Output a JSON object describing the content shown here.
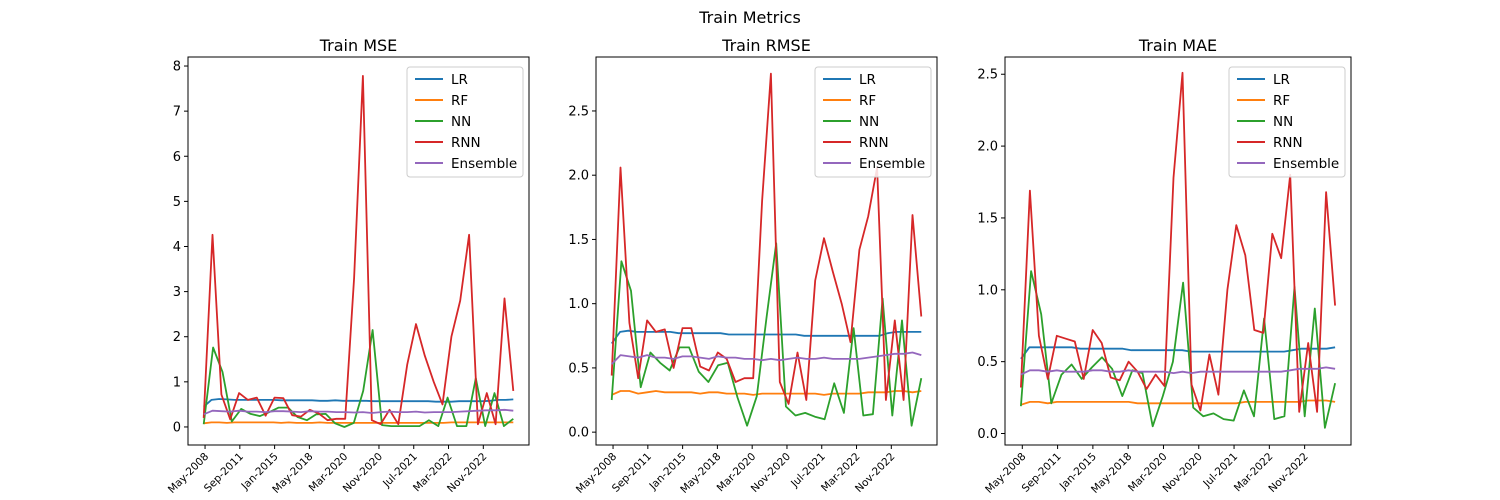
{
  "figure_title": "Train Metrics",
  "colors": {
    "LR": "#1f77b4",
    "RF": "#ff7f0e",
    "NN": "#2ca02c",
    "RNN": "#d62728",
    "Ensemble": "#9467bd"
  },
  "chart_data": [
    {
      "type": "line",
      "title": "Train MSE",
      "xlabel": "",
      "ylabel": "",
      "x_tick_labels": [
        "May-2008",
        "Sep-2011",
        "Jan-2015",
        "May-2018",
        "Mar-2020",
        "Nov-2020",
        "Jul-2021",
        "Mar-2022",
        "Nov-2022"
      ],
      "ylim": [
        -0.4,
        8.2
      ],
      "yticks": [
        0,
        1,
        2,
        3,
        4,
        5,
        6,
        7,
        8
      ],
      "legend_position": "top-right",
      "grid": false,
      "series": [
        {
          "name": "LR",
          "values": [
            0.45,
            0.6,
            0.62,
            0.61,
            0.6,
            0.6,
            0.6,
            0.6,
            0.6,
            0.6,
            0.59,
            0.59,
            0.59,
            0.59,
            0.59,
            0.58,
            0.58,
            0.59,
            0.58,
            0.58,
            0.58,
            0.58,
            0.57,
            0.57,
            0.57,
            0.57,
            0.57,
            0.57,
            0.57,
            0.57,
            0.56,
            0.56,
            0.56,
            0.57,
            0.57,
            0.57,
            0.57,
            0.58,
            0.6,
            0.6,
            0.61
          ]
        },
        {
          "name": "RF",
          "values": [
            0.08,
            0.1,
            0.1,
            0.09,
            0.1,
            0.1,
            0.1,
            0.1,
            0.1,
            0.1,
            0.09,
            0.1,
            0.09,
            0.09,
            0.09,
            0.1,
            0.09,
            0.09,
            0.09,
            0.09,
            0.09,
            0.09,
            0.09,
            0.09,
            0.09,
            0.09,
            0.09,
            0.09,
            0.09,
            0.09,
            0.09,
            0.09,
            0.1,
            0.1,
            0.1,
            0.1,
            0.1,
            0.1,
            0.1,
            0.1,
            0.1
          ]
        },
        {
          "name": "NN",
          "values": [
            0.06,
            1.76,
            1.22,
            0.12,
            0.4,
            0.29,
            0.24,
            0.33,
            0.43,
            0.43,
            0.22,
            0.15,
            0.28,
            0.29,
            0.08,
            0.0,
            0.09,
            0.8,
            2.15,
            0.04,
            0.02,
            0.02,
            0.02,
            0.02,
            0.15,
            0.02,
            0.65,
            0.02,
            0.02,
            1.08,
            0.02,
            0.75,
            0.02,
            0.18
          ]
        },
        {
          "name": "RNN",
          "values": [
            0.2,
            4.26,
            0.72,
            0.17,
            0.75,
            0.6,
            0.65,
            0.25,
            0.65,
            0.64,
            0.26,
            0.23,
            0.38,
            0.3,
            0.15,
            0.18,
            0.18,
            3.3,
            7.78,
            0.15,
            0.06,
            0.38,
            0.06,
            1.38,
            2.28,
            1.58,
            1.0,
            0.5,
            2.0,
            2.8,
            4.26,
            0.06,
            0.75,
            0.06,
            2.85,
            0.8
          ]
        },
        {
          "name": "Ensemble",
          "values": [
            0.28,
            0.36,
            0.35,
            0.34,
            0.36,
            0.34,
            0.34,
            0.33,
            0.35,
            0.35,
            0.34,
            0.33,
            0.35,
            0.34,
            0.34,
            0.33,
            0.33,
            0.32,
            0.33,
            0.31,
            0.33,
            0.34,
            0.33,
            0.33,
            0.34,
            0.32,
            0.33,
            0.33,
            0.33,
            0.34,
            0.35,
            0.36,
            0.37,
            0.37,
            0.38,
            0.36
          ]
        }
      ]
    },
    {
      "type": "line",
      "title": "Train RMSE",
      "xlabel": "",
      "ylabel": "",
      "x_tick_labels": [
        "May-2008",
        "Sep-2011",
        "Jan-2015",
        "May-2018",
        "Mar-2020",
        "Nov-2020",
        "Jul-2021",
        "Mar-2022",
        "Nov-2022"
      ],
      "ylim": [
        -0.1,
        2.92
      ],
      "yticks": [
        0.0,
        0.5,
        1.0,
        1.5,
        2.0,
        2.5
      ],
      "legend_position": "top-right",
      "grid": false,
      "series": [
        {
          "name": "LR",
          "values": [
            0.69,
            0.78,
            0.79,
            0.78,
            0.78,
            0.78,
            0.78,
            0.78,
            0.77,
            0.77,
            0.77,
            0.77,
            0.77,
            0.77,
            0.76,
            0.76,
            0.76,
            0.76,
            0.76,
            0.76,
            0.76,
            0.76,
            0.76,
            0.75,
            0.75,
            0.75,
            0.75,
            0.75,
            0.75,
            0.75,
            0.75,
            0.75,
            0.75,
            0.77,
            0.78,
            0.78,
            0.78,
            0.78
          ]
        },
        {
          "name": "RF",
          "values": [
            0.29,
            0.32,
            0.32,
            0.3,
            0.31,
            0.32,
            0.31,
            0.31,
            0.31,
            0.31,
            0.3,
            0.31,
            0.31,
            0.3,
            0.3,
            0.3,
            0.29,
            0.3,
            0.3,
            0.3,
            0.3,
            0.3,
            0.3,
            0.3,
            0.29,
            0.3,
            0.3,
            0.3,
            0.3,
            0.31,
            0.31,
            0.31,
            0.32,
            0.32,
            0.31,
            0.32
          ]
        },
        {
          "name": "NN",
          "values": [
            0.25,
            1.33,
            1.1,
            0.35,
            0.62,
            0.54,
            0.48,
            0.66,
            0.66,
            0.47,
            0.39,
            0.52,
            0.54,
            0.27,
            0.05,
            0.28,
            0.89,
            1.47,
            0.2,
            0.13,
            0.15,
            0.12,
            0.1,
            0.38,
            0.15,
            0.81,
            0.13,
            0.14,
            1.04,
            0.13,
            0.87,
            0.05,
            0.42
          ]
        },
        {
          "name": "RNN",
          "values": [
            0.44,
            2.06,
            0.85,
            0.42,
            0.87,
            0.78,
            0.8,
            0.5,
            0.81,
            0.81,
            0.51,
            0.48,
            0.62,
            0.57,
            0.39,
            0.42,
            0.42,
            1.8,
            2.79,
            0.39,
            0.22,
            0.62,
            0.25,
            1.18,
            1.51,
            1.25,
            1.0,
            0.7,
            1.42,
            1.68,
            2.06,
            0.25,
            0.87,
            0.25,
            1.69,
            0.9
          ]
        },
        {
          "name": "Ensemble",
          "values": [
            0.53,
            0.6,
            0.59,
            0.58,
            0.6,
            0.58,
            0.58,
            0.57,
            0.59,
            0.59,
            0.58,
            0.57,
            0.59,
            0.58,
            0.58,
            0.57,
            0.57,
            0.56,
            0.57,
            0.56,
            0.57,
            0.58,
            0.57,
            0.57,
            0.58,
            0.57,
            0.57,
            0.57,
            0.57,
            0.58,
            0.59,
            0.6,
            0.61,
            0.61,
            0.62,
            0.6
          ]
        }
      ]
    },
    {
      "type": "line",
      "title": "Train MAE",
      "xlabel": "",
      "ylabel": "",
      "x_tick_labels": [
        "May-2008",
        "Sep-2011",
        "Jan-2015",
        "May-2018",
        "Mar-2020",
        "Nov-2020",
        "Jul-2021",
        "Mar-2022",
        "Nov-2022"
      ],
      "ylim": [
        -0.08,
        2.62
      ],
      "yticks": [
        0.0,
        0.5,
        1.0,
        1.5,
        2.0,
        2.5
      ],
      "legend_position": "top-right",
      "grid": false,
      "series": [
        {
          "name": "LR",
          "values": [
            0.52,
            0.6,
            0.6,
            0.6,
            0.6,
            0.6,
            0.6,
            0.59,
            0.59,
            0.59,
            0.59,
            0.59,
            0.59,
            0.58,
            0.58,
            0.58,
            0.58,
            0.58,
            0.58,
            0.58,
            0.57,
            0.57,
            0.57,
            0.57,
            0.57,
            0.57,
            0.57,
            0.57,
            0.57,
            0.57,
            0.57,
            0.57,
            0.58,
            0.59,
            0.59,
            0.59,
            0.59,
            0.6
          ]
        },
        {
          "name": "RF",
          "values": [
            0.2,
            0.22,
            0.22,
            0.21,
            0.22,
            0.22,
            0.22,
            0.22,
            0.22,
            0.22,
            0.22,
            0.22,
            0.22,
            0.21,
            0.21,
            0.21,
            0.21,
            0.21,
            0.21,
            0.21,
            0.21,
            0.21,
            0.21,
            0.21,
            0.21,
            0.22,
            0.22,
            0.22,
            0.22,
            0.22,
            0.22,
            0.22,
            0.23,
            0.23,
            0.23,
            0.22
          ]
        },
        {
          "name": "NN",
          "values": [
            0.19,
            1.13,
            0.83,
            0.21,
            0.41,
            0.48,
            0.38,
            0.46,
            0.53,
            0.45,
            0.26,
            0.44,
            0.42,
            0.05,
            0.26,
            0.5,
            1.05,
            0.18,
            0.12,
            0.14,
            0.1,
            0.09,
            0.3,
            0.12,
            0.8,
            0.1,
            0.12,
            1.02,
            0.12,
            0.87,
            0.04,
            0.35
          ]
        },
        {
          "name": "RNN",
          "values": [
            0.32,
            1.69,
            0.68,
            0.38,
            0.68,
            0.66,
            0.64,
            0.38,
            0.72,
            0.63,
            0.39,
            0.37,
            0.5,
            0.43,
            0.31,
            0.41,
            0.33,
            1.78,
            2.51,
            0.34,
            0.16,
            0.55,
            0.27,
            1.0,
            1.45,
            1.24,
            0.72,
            0.7,
            1.39,
            1.22,
            1.8,
            0.15,
            0.63,
            0.15,
            1.68,
            0.89
          ]
        },
        {
          "name": "Ensemble",
          "values": [
            0.41,
            0.44,
            0.44,
            0.43,
            0.44,
            0.43,
            0.43,
            0.43,
            0.44,
            0.44,
            0.43,
            0.43,
            0.44,
            0.43,
            0.43,
            0.43,
            0.43,
            0.42,
            0.43,
            0.42,
            0.43,
            0.43,
            0.43,
            0.43,
            0.43,
            0.43,
            0.43,
            0.43,
            0.43,
            0.43,
            0.44,
            0.45,
            0.45,
            0.45,
            0.46,
            0.45
          ]
        }
      ]
    }
  ]
}
